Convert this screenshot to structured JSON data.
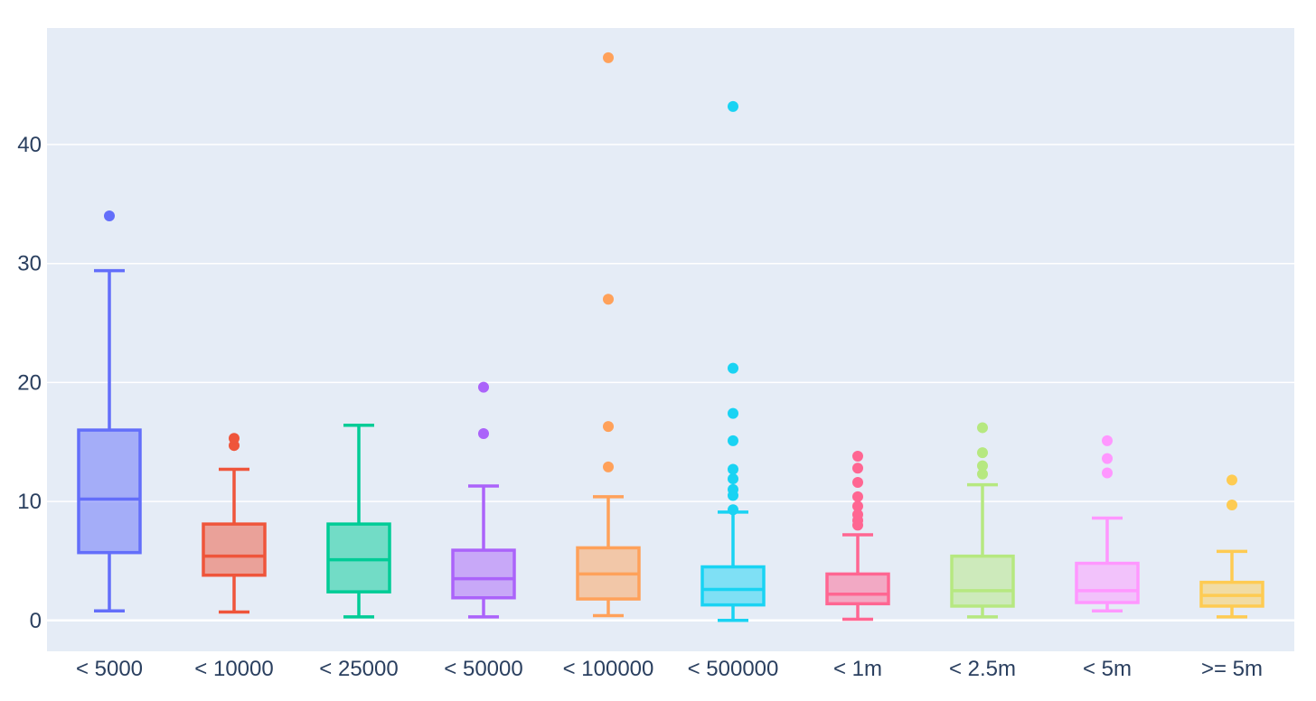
{
  "chart_data": {
    "type": "box",
    "title": "",
    "xlabel": "",
    "ylabel": "",
    "ylim": [
      -2.6,
      49.8
    ],
    "yticks": [
      0,
      10,
      20,
      30,
      40
    ],
    "grid": true,
    "background": "#e5ecf6",
    "categories": [
      "< 5000",
      "< 10000",
      "< 25000",
      "< 50000",
      "< 100000",
      "< 500000",
      "< 1m",
      "< 2.5m",
      "< 5m",
      ">= 5m"
    ],
    "series": [
      {
        "category": "< 5000",
        "color": "#636efa",
        "whisker_low": 0.8,
        "q1": 5.7,
        "median": 10.2,
        "q3": 16.0,
        "whisker_high": 29.4,
        "outliers": [
          34.0
        ]
      },
      {
        "category": "< 10000",
        "color": "#ef553b",
        "whisker_low": 0.7,
        "q1": 3.8,
        "median": 5.4,
        "q3": 8.1,
        "whisker_high": 12.7,
        "outliers": [
          14.7,
          15.3
        ]
      },
      {
        "category": "< 25000",
        "color": "#00cc96",
        "whisker_low": 0.3,
        "q1": 2.4,
        "median": 5.1,
        "q3": 8.1,
        "whisker_high": 16.4,
        "outliers": []
      },
      {
        "category": "< 50000",
        "color": "#ab63fa",
        "whisker_low": 0.3,
        "q1": 1.9,
        "median": 3.5,
        "q3": 5.9,
        "whisker_high": 11.3,
        "outliers": [
          15.7,
          19.6
        ]
      },
      {
        "category": "< 100000",
        "color": "#ffa15a",
        "whisker_low": 0.4,
        "q1": 1.8,
        "median": 3.9,
        "q3": 6.1,
        "whisker_high": 10.4,
        "outliers": [
          12.9,
          16.3,
          27.0,
          47.3
        ]
      },
      {
        "category": "< 500000",
        "color": "#19d3f3",
        "whisker_low": 0.0,
        "q1": 1.3,
        "median": 2.6,
        "q3": 4.5,
        "whisker_high": 9.1,
        "outliers": [
          9.3,
          10.5,
          11.0,
          11.9,
          12.7,
          15.1,
          17.4,
          21.2,
          43.2
        ]
      },
      {
        "category": "< 1m",
        "color": "#ff6692",
        "whisker_low": 0.1,
        "q1": 1.4,
        "median": 2.2,
        "q3": 3.9,
        "whisker_high": 7.2,
        "outliers": [
          8.0,
          8.4,
          8.9,
          9.6,
          10.4,
          11.6,
          12.8,
          13.8
        ]
      },
      {
        "category": "< 2.5m",
        "color": "#b6e880",
        "whisker_low": 0.3,
        "q1": 1.2,
        "median": 2.5,
        "q3": 5.4,
        "whisker_high": 11.4,
        "outliers": [
          12.3,
          13.0,
          14.1,
          16.2
        ]
      },
      {
        "category": "< 5m",
        "color": "#ff97ff",
        "whisker_low": 0.8,
        "q1": 1.5,
        "median": 2.5,
        "q3": 4.8,
        "whisker_high": 8.6,
        "outliers": [
          12.4,
          13.6,
          15.1
        ]
      },
      {
        "category": ">= 5m",
        "color": "#fecb52",
        "whisker_low": 0.3,
        "q1": 1.2,
        "median": 2.1,
        "q3": 3.2,
        "whisker_high": 5.8,
        "outliers": [
          9.7,
          11.8
        ]
      }
    ]
  }
}
